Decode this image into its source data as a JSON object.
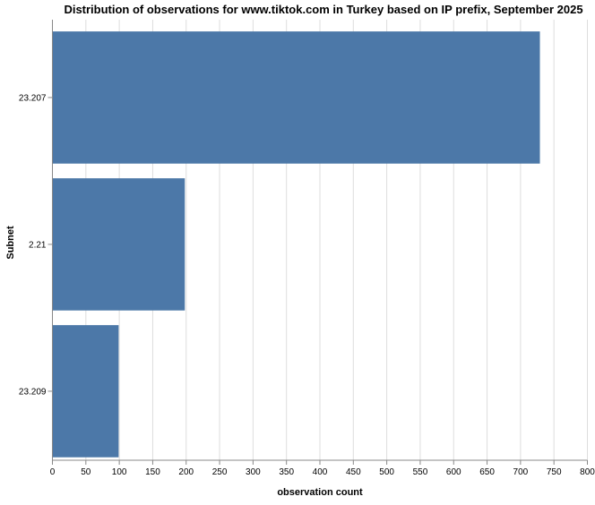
{
  "chart_data": {
    "type": "bar",
    "orientation": "horizontal",
    "title": "Distribution of observations for www.tiktok.com in Turkey based on IP prefix, September 2025",
    "xlabel": "observation count",
    "ylabel": "Subnet",
    "categories": [
      "23.207",
      "2.21",
      "23.209"
    ],
    "values": [
      729,
      198,
      99
    ],
    "xlim": [
      0,
      800
    ],
    "xticks": [
      0,
      50,
      100,
      150,
      200,
      250,
      300,
      350,
      400,
      450,
      500,
      550,
      600,
      650,
      700,
      750,
      800
    ],
    "grid": true,
    "bar_color": "#4c78a8"
  }
}
